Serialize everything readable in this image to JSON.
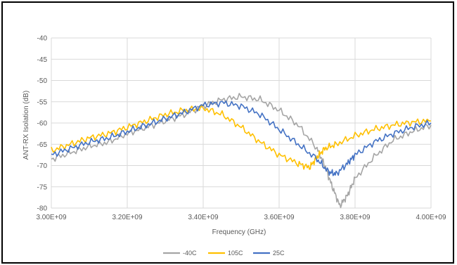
{
  "chart_data": {
    "type": "line",
    "xlabel": "Frequency (GHz)",
    "ylabel": "ANT-RX Isolation (dB)",
    "xlim": [
      3000000000,
      4000000000
    ],
    "ylim": [
      -80,
      -40
    ],
    "x_tick_labels": [
      "3.00E+09",
      "3.20E+09",
      "3.40E+09",
      "3.60E+09",
      "3.80E+09",
      "4.00E+09"
    ],
    "y_tick_labels": [
      "-40",
      "-45",
      "-50",
      "-55",
      "-60",
      "-65",
      "-70",
      "-75",
      "-80"
    ],
    "grid": true,
    "legend_position": "bottom",
    "series": [
      {
        "name": "-40C",
        "color": "#a5a5a5",
        "x": [
          3000000000,
          3050000000,
          3100000000,
          3150000000,
          3200000000,
          3250000000,
          3300000000,
          3350000000,
          3400000000,
          3450000000,
          3500000000,
          3550000000,
          3600000000,
          3650000000,
          3700000000,
          3720000000,
          3740000000,
          3760000000,
          3780000000,
          3800000000,
          3850000000,
          3900000000,
          3950000000,
          4000000000
        ],
        "y": [
          -68.5,
          -67,
          -65.5,
          -64.5,
          -62.5,
          -61,
          -59.5,
          -58,
          -56,
          -54.5,
          -53.8,
          -54.5,
          -57,
          -60.5,
          -66,
          -70,
          -75,
          -79.5,
          -77,
          -73,
          -68,
          -64,
          -62,
          -60.5
        ]
      },
      {
        "name": "105C",
        "color": "#ffc000",
        "x": [
          3000000000,
          3050000000,
          3100000000,
          3150000000,
          3200000000,
          3250000000,
          3300000000,
          3350000000,
          3400000000,
          3450000000,
          3500000000,
          3550000000,
          3600000000,
          3650000000,
          3680000000,
          3700000000,
          3720000000,
          3750000000,
          3800000000,
          3850000000,
          3900000000,
          3950000000,
          4000000000
        ],
        "y": [
          -66.5,
          -65,
          -63.5,
          -62.5,
          -61,
          -59.5,
          -58,
          -57,
          -56.5,
          -58,
          -61,
          -64.5,
          -67.5,
          -69.5,
          -70.5,
          -68,
          -66,
          -65,
          -63,
          -61.5,
          -60.5,
          -59.8,
          -59.5
        ]
      },
      {
        "name": "25C",
        "color": "#4472c4",
        "x": [
          3000000000,
          3050000000,
          3100000000,
          3150000000,
          3200000000,
          3250000000,
          3300000000,
          3350000000,
          3400000000,
          3450000000,
          3500000000,
          3550000000,
          3600000000,
          3650000000,
          3700000000,
          3730000000,
          3750000000,
          3780000000,
          3800000000,
          3850000000,
          3900000000,
          3950000000,
          4000000000
        ],
        "y": [
          -67.5,
          -66,
          -64.5,
          -63.5,
          -62,
          -60.5,
          -59,
          -57.5,
          -55.8,
          -55.2,
          -56,
          -58,
          -61.5,
          -65,
          -68.5,
          -71.5,
          -72,
          -69.5,
          -67.5,
          -64.5,
          -62.5,
          -61,
          -60
        ]
      }
    ]
  }
}
